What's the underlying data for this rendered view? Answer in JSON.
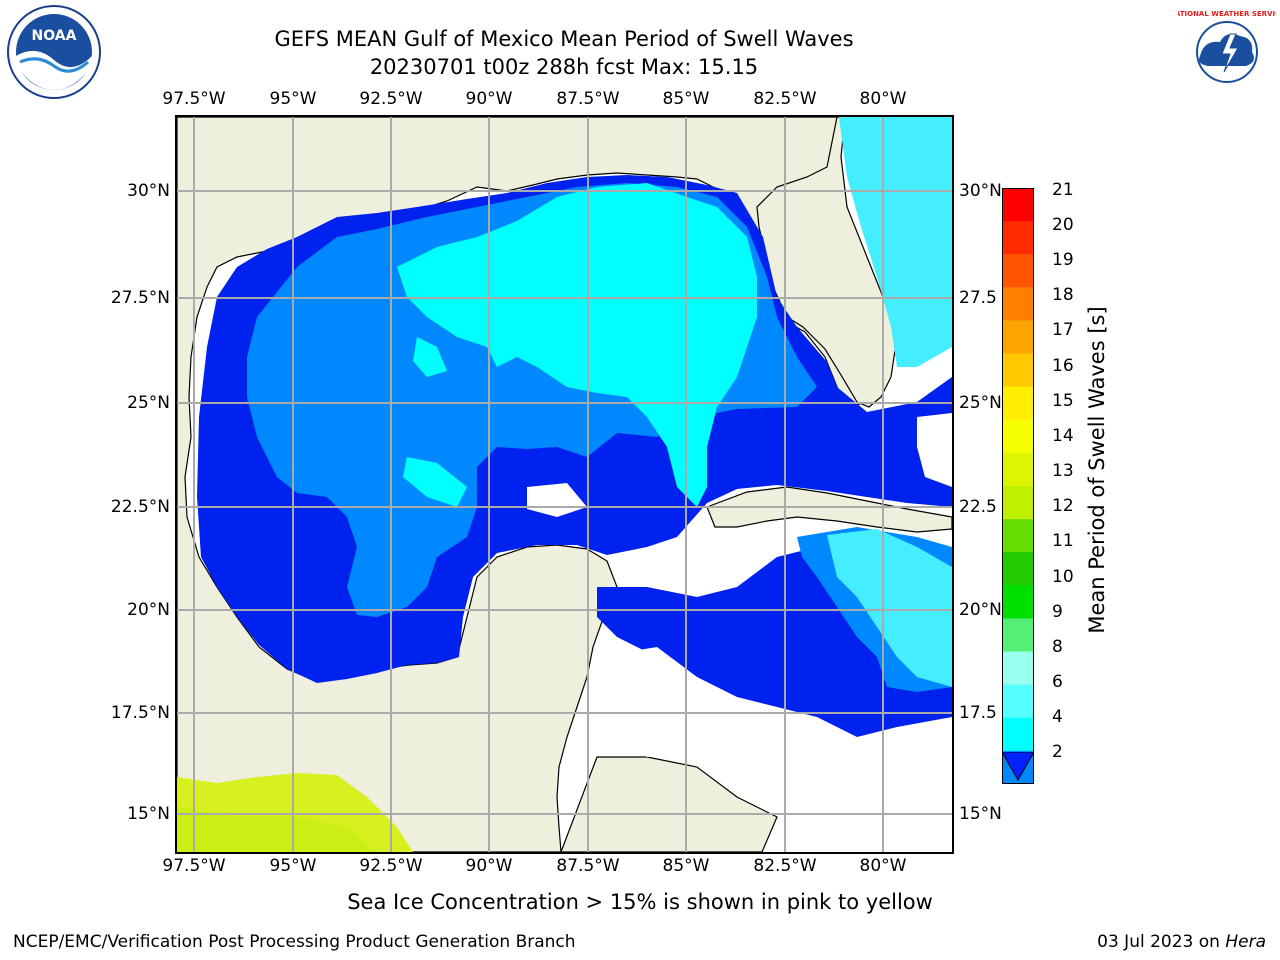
{
  "title_line1": "GEFS MEAN Gulf of Mexico Mean Period of Swell Waves",
  "title_line2": "20230701 t00z 288h fcst   Max: 15.15",
  "lon_ticks": [
    "97.5°W",
    "95°W",
    "92.5°W",
    "90°W",
    "87.5°W",
    "85°W",
    "82.5°W",
    "80°W"
  ],
  "lat_ticks_left": [
    "30°N",
    "27.5°N",
    "25°N",
    "22.5°N",
    "20°N",
    "17.5°N",
    "15°N"
  ],
  "lat_ticks_right": [
    "30°N",
    "27.5",
    "25°N",
    "22.5",
    "20°N",
    "17.5",
    "15°N"
  ],
  "colorbar": {
    "label": "Mean Period of Swell Waves [s]",
    "ticks": [
      "21",
      "20",
      "19",
      "18",
      "17",
      "16",
      "15",
      "14",
      "13",
      "12",
      "11",
      "10",
      "9",
      "8",
      "6",
      "4",
      "2"
    ],
    "colors": [
      "#ff0000",
      "#ff2a00",
      "#ff5500",
      "#ff7f00",
      "#ffa500",
      "#ffc800",
      "#ffee00",
      "#f5ff00",
      "#ddf500",
      "#bff000",
      "#66dd00",
      "#22cc00",
      "#00e000",
      "#55ee77",
      "#99ffee",
      "#55ffff",
      "#00ffff",
      "#0088ff",
      "#0022ff"
    ]
  },
  "map_colors": {
    "land": "#efefdd",
    "swell_2_4": "#0022ee",
    "swell_4_6": "#0088ff",
    "swell_6_8": "#00ffff",
    "swell_8_9": "#66ffff",
    "ice_pink_yellow": "#d8f020",
    "grid": "#aaaaaa"
  },
  "ice_note": "Sea Ice Concentration > 15% is shown in pink to yellow",
  "footer_left": "NCEP/EMC/Verification Post Processing Product Generation Branch",
  "footer_right_prefix": "03 Jul 2023 on ",
  "footer_right_host": "Hera",
  "logos": {
    "noaa": "NOAA",
    "nws": "NATIONAL WEATHER SERVICE"
  }
}
